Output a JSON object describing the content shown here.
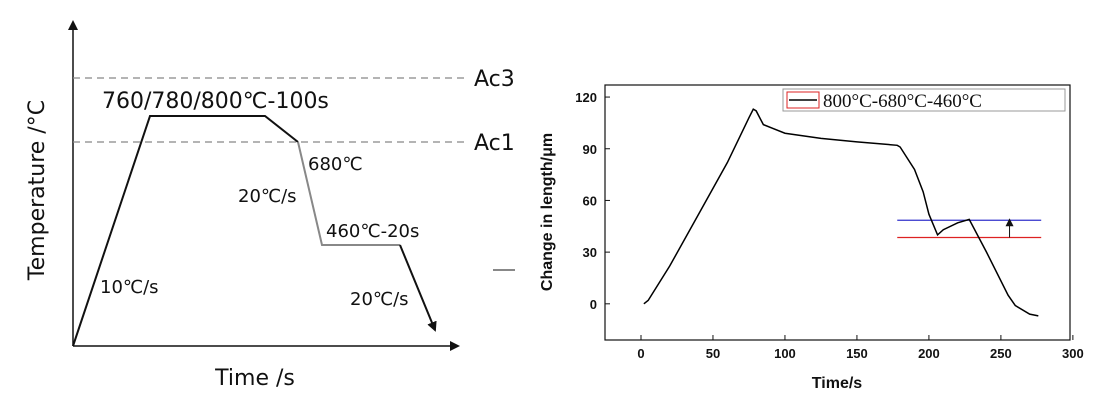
{
  "schematic": {
    "y_label": "Temperature /°C",
    "x_label": "Time /s",
    "ac3": "Ac3",
    "ac1": "Ac1",
    "hold": "760/780/800℃-100s",
    "intermediate": "680℃",
    "rate_mid": "20℃/s",
    "isothermal": "460℃-20s",
    "rate_heat": "10℃/s",
    "rate_final": "20℃/s"
  },
  "chart_data": {
    "type": "line",
    "x_label": "Time/s",
    "y_label": "Change in length/μm",
    "xlim": [
      -25,
      298
    ],
    "ylim": [
      -21,
      127
    ],
    "xticks": [
      0,
      50,
      100,
      150,
      200,
      250,
      300
    ],
    "yticks": [
      0,
      30,
      60,
      90,
      120
    ],
    "x": [
      2,
      5,
      20,
      40,
      60,
      75,
      78,
      80,
      85,
      100,
      125,
      150,
      178,
      180,
      190,
      196,
      200,
      206,
      210,
      220,
      228,
      240,
      255,
      260,
      270,
      276
    ],
    "series": [
      {
        "name": "800°C-680°C-460°C",
        "color": "#000000",
        "values": [
          0,
          2,
          22,
          52,
          82,
          108,
          113,
          112,
          104,
          99,
          96,
          94,
          92,
          91,
          78,
          65,
          52,
          40,
          43,
          47,
          49,
          30,
          5,
          -1,
          -6,
          -7
        ]
      }
    ],
    "reference_lines": [
      {
        "value": 48.5,
        "color": "#3333cc",
        "xrange": [
          178,
          278
        ]
      },
      {
        "value": 38.5,
        "color": "#dd2222",
        "xrange": [
          178,
          278
        ]
      }
    ],
    "arrow_x": 256
  }
}
